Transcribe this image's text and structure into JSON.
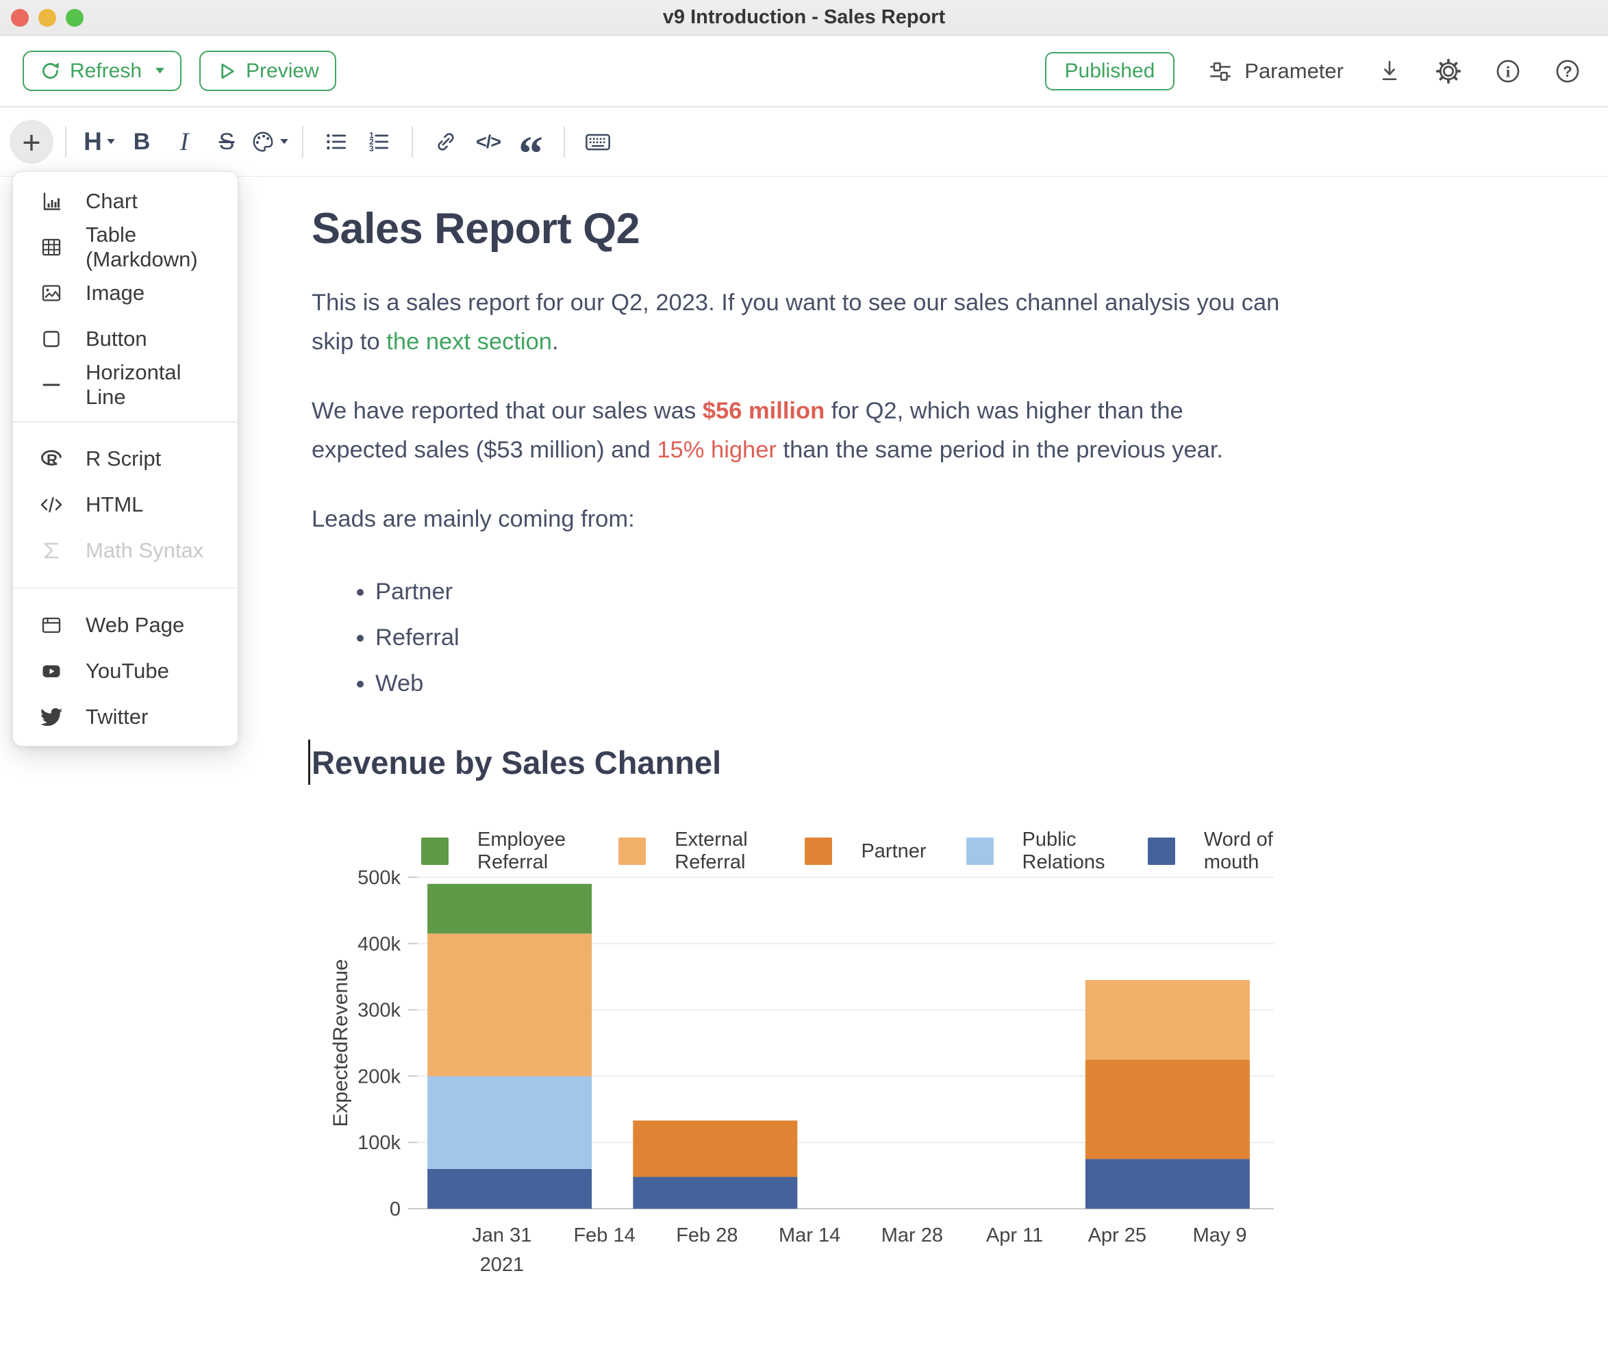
{
  "window": {
    "title": "v9 Introduction - Sales Report"
  },
  "top_toolbar": {
    "refresh_label": "Refresh",
    "preview_label": "Preview",
    "published_label": "Published",
    "parameter_label": "Parameter",
    "accent_color": "#3fa45f"
  },
  "format_toolbar": {
    "plus": "+",
    "heading": "H",
    "bold": "B",
    "italic": "I",
    "strike": "S",
    "code": "</>",
    "quote": "“"
  },
  "icons": {
    "titlebar": [
      "close-icon",
      "minimize-icon",
      "zoom-icon"
    ],
    "top_toolbar": [
      "refresh-icon",
      "play-icon",
      "sliders-icon",
      "download-icon",
      "gear-icon",
      "info-icon",
      "help-icon"
    ],
    "format_toolbar": [
      "plus-icon",
      "heading-icon",
      "bold-icon",
      "italic-icon",
      "strikethrough-icon",
      "palette-icon",
      "bullet-list-icon",
      "numbered-list-icon",
      "link-icon",
      "code-icon",
      "quote-icon",
      "keyboard-icon"
    ],
    "insert_menu": [
      "chart-icon",
      "table-icon",
      "image-icon",
      "button-icon",
      "horizontal-line-icon",
      "r-logo-icon",
      "code-icon",
      "sigma-icon",
      "web-page-icon",
      "youtube-icon",
      "twitter-icon"
    ]
  },
  "insert_menu": {
    "sections": [
      {
        "items": [
          {
            "label": "Chart"
          },
          {
            "label": "Table (Markdown)"
          },
          {
            "label": "Image"
          },
          {
            "label": "Button"
          },
          {
            "label": "Horizontal Line"
          }
        ]
      },
      {
        "items": [
          {
            "label": "R Script"
          },
          {
            "label": "HTML"
          },
          {
            "label": "Math Syntax",
            "disabled": true
          }
        ]
      },
      {
        "items": [
          {
            "label": "Web Page"
          },
          {
            "label": "YouTube"
          },
          {
            "label": "Twitter"
          }
        ]
      }
    ]
  },
  "document": {
    "title": "Sales Report Q2",
    "paragraph1": [
      {
        "t": "This is a sales report for our Q2, 2023. If you want to see our sales channel analysis you can"
      },
      {
        "br": true
      },
      {
        "t": "skip to "
      },
      {
        "t": "the next section",
        "s": "link"
      },
      {
        "t": "."
      }
    ],
    "paragraph2": [
      {
        "t": "We have reported that our sales was "
      },
      {
        "t": "$56 million",
        "s": "red-bold"
      },
      {
        "t": " for Q2, which was higher than the"
      },
      {
        "br": true
      },
      {
        "t": "expected sales ($53 million) and "
      },
      {
        "t": "15% higher",
        "s": "red"
      },
      {
        "t": " than the same period in the previous year."
      }
    ],
    "paragraph3": "Leads are mainly coming from:",
    "bullets": [
      "Partner",
      "Referral",
      "Web"
    ],
    "section_heading": "Revenue by Sales Channel",
    "link_color": "#3fa45f",
    "highlight_color": "#dc6054"
  },
  "chart_data": {
    "type": "bar",
    "stacked": true,
    "title": "",
    "x": {
      "ticks": [
        "Jan 31",
        "Feb 14",
        "Feb 28",
        "Mar 14",
        "Mar 28",
        "Apr 11",
        "Apr 25",
        "May 9"
      ],
      "year_label": "2021"
    },
    "y": {
      "label": "ExpectedRevenue",
      "ticks": [
        "0",
        "100k",
        "200k",
        "300k",
        "400k",
        "500k"
      ],
      "max": 500000
    },
    "grid": true,
    "legend_position": "top",
    "legend": [
      {
        "name": "Employee Referral",
        "color": "#5e9a47"
      },
      {
        "name": "External Referral",
        "color": "#f1b06a"
      },
      {
        "name": "Partner",
        "color": "#e08434"
      },
      {
        "name": "Public Relations",
        "color": "#a2c6e9"
      },
      {
        "name": "Word of mouth",
        "color": "#45639b"
      }
    ],
    "bars": [
      {
        "x_frac": 0.108,
        "segments": [
          {
            "series": "Word of mouth",
            "value": 60000
          },
          {
            "series": "Public Relations",
            "value": 140000
          },
          {
            "series": "External Referral",
            "value": 215000
          },
          {
            "series": "Employee Referral",
            "value": 75000
          }
        ]
      },
      {
        "x_frac": 0.348,
        "segments": [
          {
            "series": "Word of mouth",
            "value": 48000
          },
          {
            "series": "Partner",
            "value": 85000
          }
        ]
      },
      {
        "x_frac": 0.876,
        "segments": [
          {
            "series": "Word of mouth",
            "value": 75000
          },
          {
            "series": "Partner",
            "value": 150000
          },
          {
            "series": "External Referral",
            "value": 120000
          }
        ]
      }
    ]
  }
}
